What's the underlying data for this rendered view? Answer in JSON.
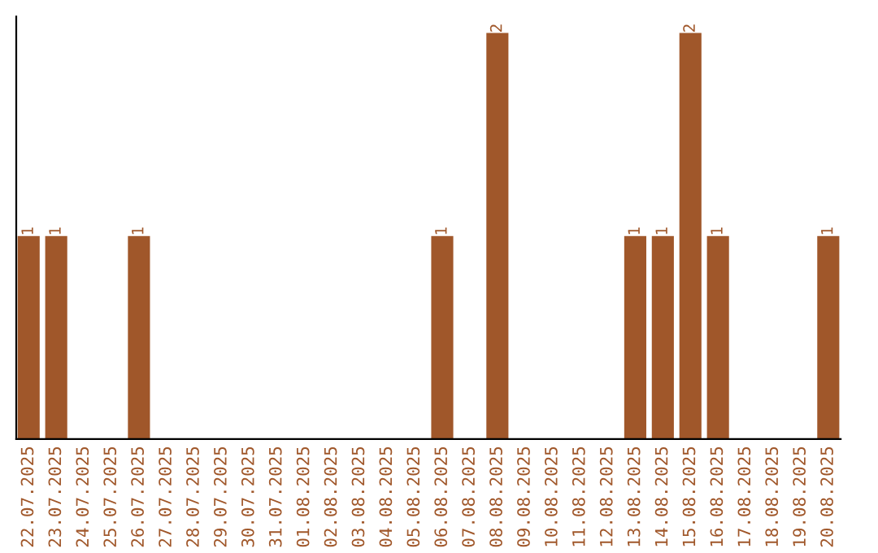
{
  "chart_data": {
    "type": "bar",
    "categories": [
      "22.07.2025",
      "23.07.2025",
      "24.07.2025",
      "25.07.2025",
      "26.07.2025",
      "27.07.2025",
      "28.07.2025",
      "29.07.2025",
      "30.07.2025",
      "31.07.2025",
      "01.08.2025",
      "02.08.2025",
      "03.08.2025",
      "04.08.2025",
      "05.08.2025",
      "06.08.2025",
      "07.08.2025",
      "08.08.2025",
      "09.08.2025",
      "10.08.2025",
      "11.08.2025",
      "12.08.2025",
      "13.08.2025",
      "14.08.2025",
      "15.08.2025",
      "16.08.2025",
      "17.08.2025",
      "18.08.2025",
      "19.08.2025",
      "20.08.2025"
    ],
    "values": [
      1,
      1,
      0,
      0,
      1,
      0,
      0,
      0,
      0,
      0,
      0,
      0,
      0,
      0,
      0,
      1,
      0,
      2,
      0,
      0,
      0,
      0,
      1,
      1,
      2,
      1,
      0,
      0,
      0,
      1
    ],
    "value_labels": [
      "1",
      "1",
      null,
      null,
      "1",
      null,
      null,
      null,
      null,
      null,
      null,
      null,
      null,
      null,
      null,
      "1",
      null,
      "2",
      null,
      null,
      null,
      null,
      "1",
      "1",
      "2",
      "1",
      null,
      null,
      null,
      "1"
    ],
    "color": "#a0572a",
    "tick_labels": "x",
    "grid": false,
    "legend": false
  }
}
